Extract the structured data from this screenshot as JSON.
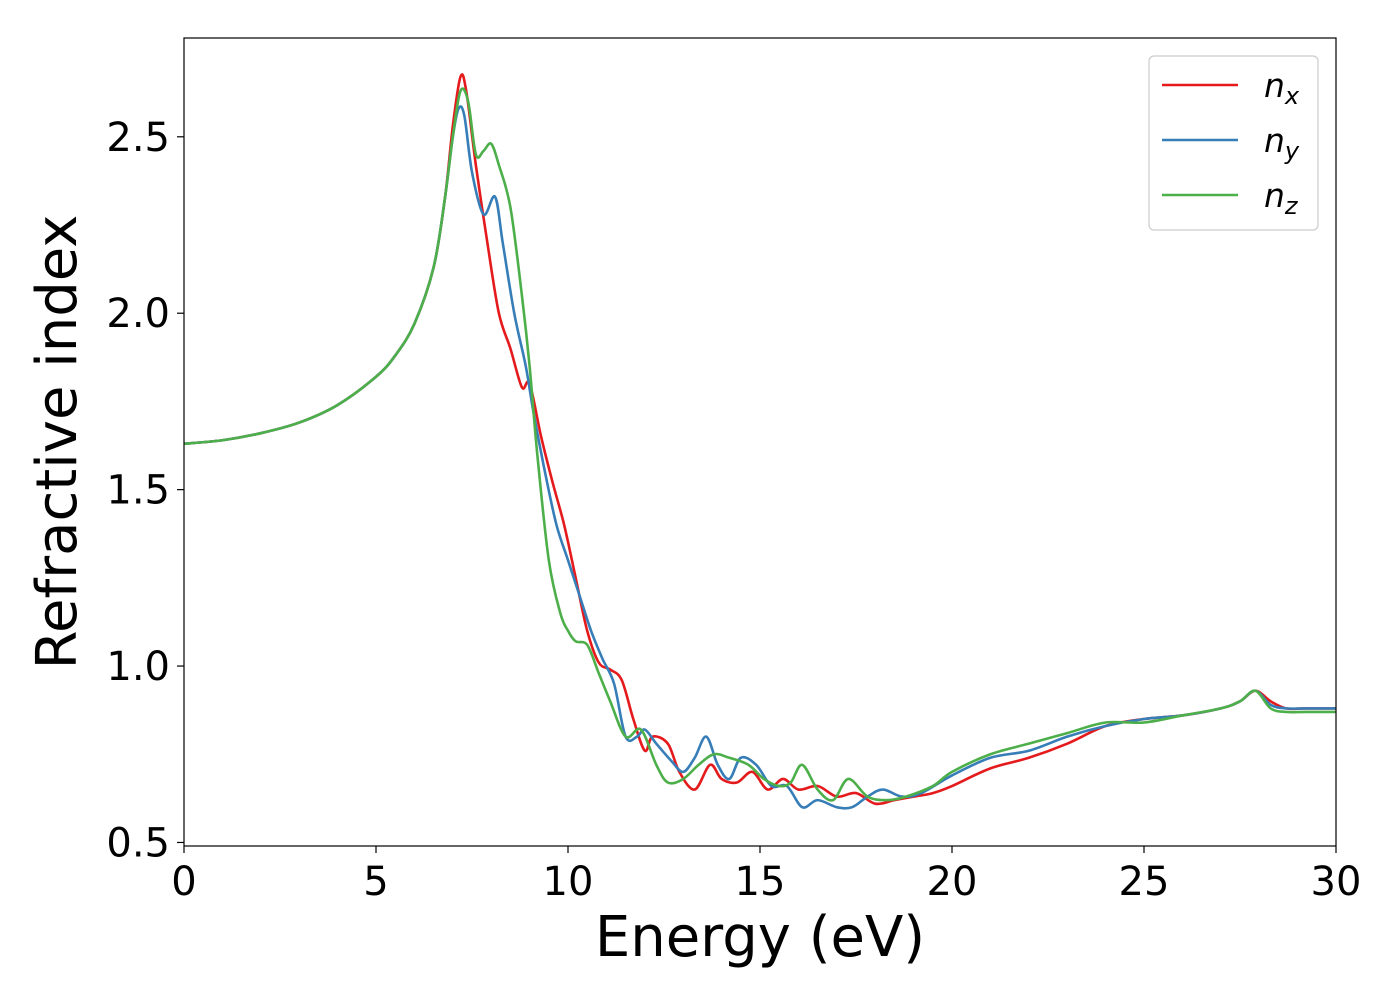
{
  "chart_data": {
    "type": "line",
    "title": "",
    "xlabel": "Energy (eV)",
    "ylabel": "Refractive index",
    "xlim": [
      0,
      30
    ],
    "ylim": [
      0.49,
      2.78
    ],
    "xticks": [
      0,
      5,
      10,
      15,
      20,
      25,
      30
    ],
    "xtick_labels": [
      "0",
      "5",
      "10",
      "15",
      "20",
      "25",
      "30"
    ],
    "yticks": [
      0.5,
      1.0,
      1.5,
      2.0,
      2.5
    ],
    "ytick_labels": [
      "0.5",
      "1.0",
      "1.5",
      "2.0",
      "2.5"
    ],
    "grid": false,
    "legend_position": "top-right",
    "series": [
      {
        "name": "n",
        "subscript": "x",
        "color": "#e41a1c",
        "x": [
          0,
          1,
          2,
          3,
          4,
          5,
          5.5,
          6,
          6.5,
          6.8,
          7.0,
          7.2,
          7.35,
          7.6,
          7.9,
          8.2,
          8.5,
          8.8,
          9.0,
          9.3,
          9.6,
          9.9,
          10.2,
          10.5,
          10.8,
          11.1,
          11.4,
          11.7,
          12.0,
          12.2,
          12.6,
          12.9,
          13.3,
          13.7,
          14.0,
          14.4,
          14.8,
          15.2,
          15.6,
          16.0,
          16.5,
          17.0,
          17.5,
          18.0,
          18.5,
          19.0,
          19.5,
          20.0,
          21.0,
          22.0,
          23.0,
          24.0,
          25.0,
          26.0,
          27.0,
          27.5,
          27.9,
          28.3,
          28.7,
          29.2,
          30.0
        ],
        "y": [
          1.63,
          1.64,
          1.66,
          1.69,
          1.74,
          1.82,
          1.88,
          1.97,
          2.13,
          2.33,
          2.53,
          2.67,
          2.63,
          2.42,
          2.2,
          2.0,
          1.9,
          1.79,
          1.8,
          1.65,
          1.52,
          1.4,
          1.25,
          1.1,
          1.01,
          0.99,
          0.96,
          0.85,
          0.76,
          0.8,
          0.78,
          0.7,
          0.65,
          0.72,
          0.68,
          0.67,
          0.7,
          0.65,
          0.68,
          0.65,
          0.66,
          0.63,
          0.64,
          0.61,
          0.62,
          0.63,
          0.64,
          0.66,
          0.71,
          0.74,
          0.78,
          0.83,
          0.85,
          0.86,
          0.88,
          0.9,
          0.93,
          0.9,
          0.88,
          0.88,
          0.88
        ]
      },
      {
        "name": "n",
        "subscript": "y",
        "color": "#377eb8",
        "x": [
          0,
          1,
          2,
          3,
          4,
          5,
          5.5,
          6,
          6.5,
          6.8,
          7.0,
          7.15,
          7.3,
          7.5,
          7.8,
          8.1,
          8.3,
          8.6,
          8.9,
          9.1,
          9.4,
          9.7,
          10.0,
          10.3,
          10.6,
          10.9,
          11.2,
          11.5,
          11.8,
          12.0,
          12.3,
          12.7,
          13.0,
          13.3,
          13.6,
          13.9,
          14.2,
          14.5,
          14.9,
          15.3,
          15.7,
          16.1,
          16.5,
          17.0,
          17.4,
          17.8,
          18.2,
          18.7,
          19.2,
          20.0,
          21.0,
          22.0,
          23.0,
          24.0,
          25.0,
          26.0,
          27.0,
          27.5,
          27.9,
          28.3,
          28.7,
          29.2,
          30.0
        ],
        "y": [
          1.63,
          1.64,
          1.66,
          1.69,
          1.74,
          1.82,
          1.88,
          1.97,
          2.13,
          2.33,
          2.5,
          2.58,
          2.56,
          2.4,
          2.28,
          2.33,
          2.2,
          2.0,
          1.85,
          1.72,
          1.55,
          1.4,
          1.3,
          1.2,
          1.1,
          1.02,
          0.95,
          0.8,
          0.8,
          0.82,
          0.78,
          0.73,
          0.7,
          0.74,
          0.8,
          0.72,
          0.68,
          0.74,
          0.72,
          0.66,
          0.66,
          0.6,
          0.62,
          0.6,
          0.6,
          0.63,
          0.65,
          0.63,
          0.64,
          0.69,
          0.74,
          0.76,
          0.8,
          0.83,
          0.85,
          0.86,
          0.88,
          0.9,
          0.93,
          0.89,
          0.88,
          0.88,
          0.88
        ]
      },
      {
        "name": "n",
        "subscript": "z",
        "color": "#4daf4a",
        "x": [
          0,
          1,
          2,
          3,
          4,
          5,
          5.5,
          6,
          6.5,
          6.8,
          7.0,
          7.2,
          7.4,
          7.6,
          7.8,
          8.0,
          8.2,
          8.5,
          8.8,
          9.0,
          9.2,
          9.5,
          9.8,
          10.0,
          10.2,
          10.5,
          10.8,
          11.1,
          11.5,
          11.9,
          12.3,
          12.6,
          13.0,
          13.4,
          13.8,
          14.2,
          14.7,
          15.1,
          15.5,
          15.8,
          16.1,
          16.5,
          16.9,
          17.3,
          17.8,
          18.3,
          18.8,
          19.5,
          20.0,
          21.0,
          22.0,
          23.0,
          24.0,
          25.0,
          26.0,
          27.0,
          27.5,
          27.9,
          28.3,
          28.7,
          29.2,
          30.0
        ],
        "y": [
          1.63,
          1.64,
          1.66,
          1.69,
          1.74,
          1.82,
          1.88,
          1.97,
          2.13,
          2.33,
          2.5,
          2.63,
          2.6,
          2.45,
          2.46,
          2.48,
          2.42,
          2.3,
          2.05,
          1.85,
          1.6,
          1.3,
          1.15,
          1.1,
          1.07,
          1.06,
          0.98,
          0.9,
          0.8,
          0.82,
          0.72,
          0.67,
          0.68,
          0.72,
          0.75,
          0.74,
          0.72,
          0.68,
          0.66,
          0.67,
          0.72,
          0.65,
          0.62,
          0.68,
          0.63,
          0.62,
          0.63,
          0.66,
          0.7,
          0.75,
          0.78,
          0.81,
          0.84,
          0.84,
          0.86,
          0.88,
          0.9,
          0.93,
          0.88,
          0.87,
          0.87,
          0.87
        ]
      }
    ]
  }
}
